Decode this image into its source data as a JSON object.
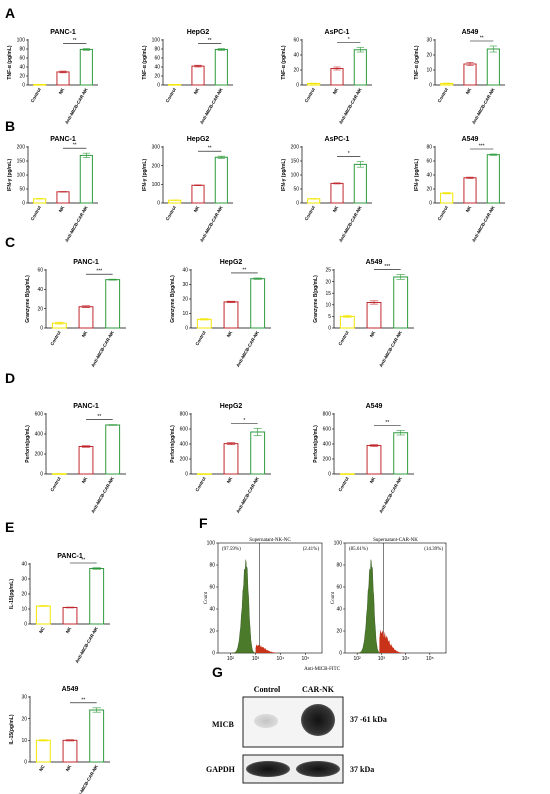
{
  "panel_letters": [
    "A",
    "B",
    "C",
    "D",
    "E",
    "F",
    "G"
  ],
  "colors": {
    "control": "#f2e600",
    "nk": "#c0282d",
    "car": "#2e9a3c",
    "hist_green": "#4a7a2a",
    "hist_red": "#c83218"
  },
  "category_labels": [
    "Control",
    "NK",
    "Anti-MICB-CAR-NK"
  ],
  "chart_data": [
    {
      "panel": "A",
      "type": "bar",
      "title": "PANC-1",
      "ylabel": "TNF-α (pg/mL)",
      "categories": [
        "Control",
        "NK",
        "Anti-MICB-CAR-NK"
      ],
      "values": [
        1,
        29,
        79
      ],
      "errors": [
        0.5,
        2,
        2
      ],
      "ylim": [
        0,
        100
      ],
      "yticks": [
        0,
        20,
        40,
        60,
        80,
        100
      ],
      "significance": "**"
    },
    {
      "panel": "A",
      "type": "bar",
      "title": "HepG2",
      "ylabel": "TNF-α (pg/mL)",
      "categories": [
        "Control",
        "NK",
        "Anti-MICB-CAR-NK"
      ],
      "values": [
        1,
        42,
        79
      ],
      "errors": [
        0.5,
        2,
        2
      ],
      "ylim": [
        0,
        100
      ],
      "yticks": [
        0,
        20,
        40,
        60,
        80,
        100
      ],
      "significance": "**"
    },
    {
      "panel": "A",
      "type": "bar",
      "title": "AsPC-1",
      "ylabel": "TNF-α (pg/mL)",
      "categories": [
        "Control",
        "NK",
        "Anti-MICB-CAR-NK"
      ],
      "values": [
        2,
        22,
        47
      ],
      "errors": [
        0.5,
        2,
        3
      ],
      "ylim": [
        0,
        60
      ],
      "yticks": [
        0,
        20,
        40,
        60
      ],
      "significance": "*"
    },
    {
      "panel": "A",
      "type": "bar",
      "title": "A549",
      "ylabel": "TNF-α (pg/mL)",
      "categories": [
        "Control",
        "NK",
        "Anti-MICB-CAR-NK"
      ],
      "values": [
        1,
        14,
        24
      ],
      "errors": [
        0.3,
        1,
        2
      ],
      "ylim": [
        0,
        30
      ],
      "yticks": [
        0,
        10,
        20,
        30
      ],
      "significance": "**"
    },
    {
      "panel": "B",
      "type": "bar",
      "title": "PANC-1",
      "ylabel": "IFN-γ (pg/mL)",
      "categories": [
        "Control",
        "NK",
        "Anti-MICB-CAR-NK"
      ],
      "values": [
        15,
        40,
        170
      ],
      "errors": [
        1,
        1,
        8
      ],
      "ylim": [
        0,
        200
      ],
      "yticks": [
        0,
        50,
        100,
        150,
        200
      ],
      "significance": "**"
    },
    {
      "panel": "B",
      "type": "bar",
      "title": "HepG2",
      "ylabel": "IFN-γ (pg/mL)",
      "categories": [
        "Control",
        "NK",
        "Anti-MICB-CAR-NK"
      ],
      "values": [
        15,
        95,
        245
      ],
      "errors": [
        1,
        2,
        6
      ],
      "ylim": [
        0,
        300
      ],
      "yticks": [
        0,
        100,
        200,
        300
      ],
      "significance": "**"
    },
    {
      "panel": "B",
      "type": "bar",
      "title": "AsPC-1",
      "ylabel": "IFN-γ (pg/mL)",
      "categories": [
        "Control",
        "NK",
        "Anti-MICB-CAR-NK"
      ],
      "values": [
        15,
        70,
        138
      ],
      "errors": [
        1,
        2,
        10
      ],
      "ylim": [
        0,
        200
      ],
      "yticks": [
        0,
        50,
        100,
        150,
        200
      ],
      "significance": "*"
    },
    {
      "panel": "B",
      "type": "bar",
      "title": "A549",
      "ylabel": "IFN-γ (pg/mL)",
      "categories": [
        "Control",
        "NK",
        "Anti-MICB-CAR-NK"
      ],
      "values": [
        14,
        36,
        69
      ],
      "errors": [
        1,
        1,
        1
      ],
      "ylim": [
        0,
        80
      ],
      "yticks": [
        0,
        20,
        40,
        60,
        80
      ],
      "significance": "***"
    },
    {
      "panel": "C",
      "type": "bar",
      "title": "PANC-1",
      "ylabel": "Granzyme B(pg/mL)",
      "categories": [
        "Control",
        "NK",
        "Anti-MICB-CAR-NK"
      ],
      "values": [
        5,
        22,
        50
      ],
      "errors": [
        1,
        1,
        0.5
      ],
      "ylim": [
        0,
        60
      ],
      "yticks": [
        0,
        20,
        40,
        60
      ],
      "significance": "***"
    },
    {
      "panel": "C",
      "type": "bar",
      "title": "HepG2",
      "ylabel": "Granzyme B(pg/mL)",
      "categories": [
        "Control",
        "NK",
        "Anti-MICB-CAR-NK"
      ],
      "values": [
        6,
        18,
        34
      ],
      "errors": [
        0.5,
        0.5,
        0.5
      ],
      "ylim": [
        0,
        40
      ],
      "yticks": [
        0,
        10,
        20,
        30,
        40
      ],
      "significance": "**"
    },
    {
      "panel": "C",
      "type": "bar",
      "title": "A549",
      "ylabel": "Granzyme B(pg/mL)",
      "categories": [
        "Control",
        "NK",
        "Anti-MICB-CAR-NK"
      ],
      "values": [
        5,
        11,
        22
      ],
      "errors": [
        0.5,
        0.7,
        1
      ],
      "ylim": [
        0,
        25
      ],
      "yticks": [
        0,
        5,
        10,
        15,
        20,
        25
      ],
      "significance": "***"
    },
    {
      "panel": "D",
      "type": "bar",
      "title": "PANC-1",
      "ylabel": "Perforin(pg/mL)",
      "categories": [
        "Control",
        "NK",
        "Anti-MICB-CAR-NK"
      ],
      "values": [
        2,
        275,
        490
      ],
      "errors": [
        1,
        8,
        4
      ],
      "ylim": [
        0,
        600
      ],
      "yticks": [
        0,
        200,
        400,
        600
      ],
      "significance": "**"
    },
    {
      "panel": "D",
      "type": "bar",
      "title": "HepG2",
      "ylabel": "Perforin(pg/mL)",
      "categories": [
        "Control",
        "NK",
        "Anti-MICB-CAR-NK"
      ],
      "values": [
        2,
        405,
        560
      ],
      "errors": [
        1,
        15,
        50
      ],
      "ylim": [
        0,
        800
      ],
      "yticks": [
        0,
        200,
        400,
        600,
        800
      ],
      "significance": "*"
    },
    {
      "panel": "D",
      "type": "bar",
      "title": "A549",
      "ylabel": "Perforin(pg/mL)",
      "categories": [
        "Control",
        "NK",
        "Anti-MICB-CAR-NK"
      ],
      "values": [
        2,
        380,
        550
      ],
      "errors": [
        1,
        15,
        30
      ],
      "ylim": [
        0,
        800
      ],
      "yticks": [
        0,
        200,
        400,
        600,
        800
      ],
      "significance": "**"
    },
    {
      "panel": "E",
      "type": "bar",
      "title": "PANC-1",
      "ylabel": "IL-15(pg/mL)",
      "categories": [
        "NC",
        "NK",
        "Anti-MICB-CAR-NK"
      ],
      "values": [
        12,
        11,
        37
      ],
      "errors": [
        0.3,
        0.3,
        0.5
      ],
      "ylim": [
        0,
        40
      ],
      "yticks": [
        0,
        10,
        20,
        30,
        40
      ],
      "significance": "**"
    },
    {
      "panel": "E",
      "type": "bar",
      "title": "A549",
      "ylabel": "IL-15(pg/mL)",
      "categories": [
        "NC",
        "NK",
        "Anti-MICB-CAR-NK"
      ],
      "values": [
        10,
        10,
        24
      ],
      "errors": [
        0.3,
        0.3,
        1
      ],
      "ylim": [
        0,
        30
      ],
      "yticks": [
        0,
        10,
        20,
        30
      ],
      "significance": "**"
    }
  ],
  "flow": {
    "xlabel": "Anti-MICB-FITC",
    "ylabel": "Count",
    "plots": [
      {
        "title": "Supernatant-NK-NC",
        "left_pct": "(97.59%)",
        "right_pct": "(2.41%)"
      },
      {
        "title": "Supernatant-CAR-NK",
        "left_pct": "(85.61%)",
        "right_pct": "(14.39%)"
      }
    ],
    "yticks": [
      "0",
      "20",
      "40",
      "60",
      "80",
      "100"
    ],
    "xticks": [
      "10²",
      "10³",
      "10⁴",
      "10⁵"
    ]
  },
  "blot": {
    "lanes": [
      "Control",
      "CAR-NK"
    ],
    "rows": [
      {
        "label": "MICB",
        "size": "37 -61 kDa"
      },
      {
        "label": "GAPDH",
        "size": "37 kDa"
      }
    ]
  }
}
